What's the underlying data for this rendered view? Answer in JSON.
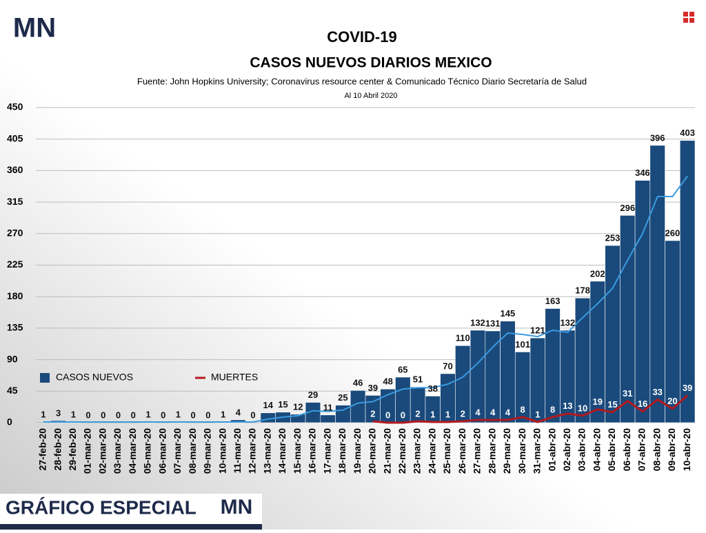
{
  "chart_data": {
    "type": "bar",
    "logo": "MN",
    "title": "COVID-19",
    "subtitle": "CASOS NUEVOS DIARIOS MEXICO",
    "source": "Fuente: John Hopkins University; Coronavirus resource center & Comunicado Técnico Diario Secretaría de Salud",
    "date_note": "Al 10 Abril 2020",
    "banner": "GRÁFICO ESPECIAL",
    "categories": [
      "27-feb-20",
      "28-feb-20",
      "29-feb-20",
      "01-mar-20",
      "02-mar-20",
      "03-mar-20",
      "04-mar-20",
      "05-mar-20",
      "06-mar-20",
      "07-mar-20",
      "08-mar-20",
      "09-mar-20",
      "10-mar-20",
      "11-mar-20",
      "12-mar-20",
      "13-mar-20",
      "14-mar-20",
      "15-mar-20",
      "16-mar-20",
      "17-mar-20",
      "18-mar-20",
      "19-mar-20",
      "20-mar-20",
      "21-mar-20",
      "22-mar-20",
      "23-mar-20",
      "24-mar-20",
      "25-mar-20",
      "26-mar-20",
      "27-mar-20",
      "28-mar-20",
      "29-mar-20",
      "30-mar-20",
      "31-mar-20",
      "01-abr-20",
      "02-abr-20",
      "03-abr-20",
      "04-abr-20",
      "05-abr-20",
      "06-abr-20",
      "07-abr-20",
      "08-abr-20",
      "09-abr-20",
      "10-abr-20"
    ],
    "series": [
      {
        "name": "CASOS NUEVOS",
        "type": "bar",
        "color": "#1a4a7c",
        "values": [
          1,
          3,
          1,
          0,
          0,
          0,
          0,
          1,
          0,
          1,
          0,
          0,
          1,
          4,
          0,
          14,
          15,
          12,
          29,
          11,
          25,
          46,
          39,
          48,
          65,
          51,
          38,
          70,
          110,
          132,
          131,
          145,
          101,
          121,
          163,
          132,
          178,
          202,
          253,
          296,
          346,
          396,
          260,
          403
        ]
      },
      {
        "name": "MUERTES",
        "type": "line",
        "color": "#b3191e",
        "values": [
          null,
          null,
          null,
          null,
          null,
          null,
          null,
          null,
          null,
          null,
          null,
          null,
          null,
          null,
          null,
          null,
          null,
          null,
          null,
          null,
          null,
          null,
          2,
          0,
          0,
          2,
          1,
          1,
          2,
          4,
          4,
          4,
          8,
          1,
          8,
          13,
          10,
          19,
          15,
          31,
          16,
          33,
          20,
          39
        ]
      },
      {
        "type": "line",
        "color": "#3a9be0",
        "values": [
          1,
          1,
          1,
          1,
          1,
          1,
          1,
          1,
          1,
          1,
          1,
          1,
          1,
          1,
          1,
          5,
          8,
          10,
          17,
          16,
          18,
          28,
          30,
          40,
          48,
          50,
          50,
          55,
          65,
          85,
          108,
          128,
          126,
          123,
          132,
          129,
          150,
          170,
          192,
          232,
          270,
          323,
          323,
          352
        ]
      }
    ],
    "ylim": [
      0,
      450
    ],
    "yticks": [
      0,
      45,
      90,
      135,
      180,
      225,
      270,
      315,
      360,
      405,
      450
    ],
    "grid": true,
    "legend": "left"
  }
}
